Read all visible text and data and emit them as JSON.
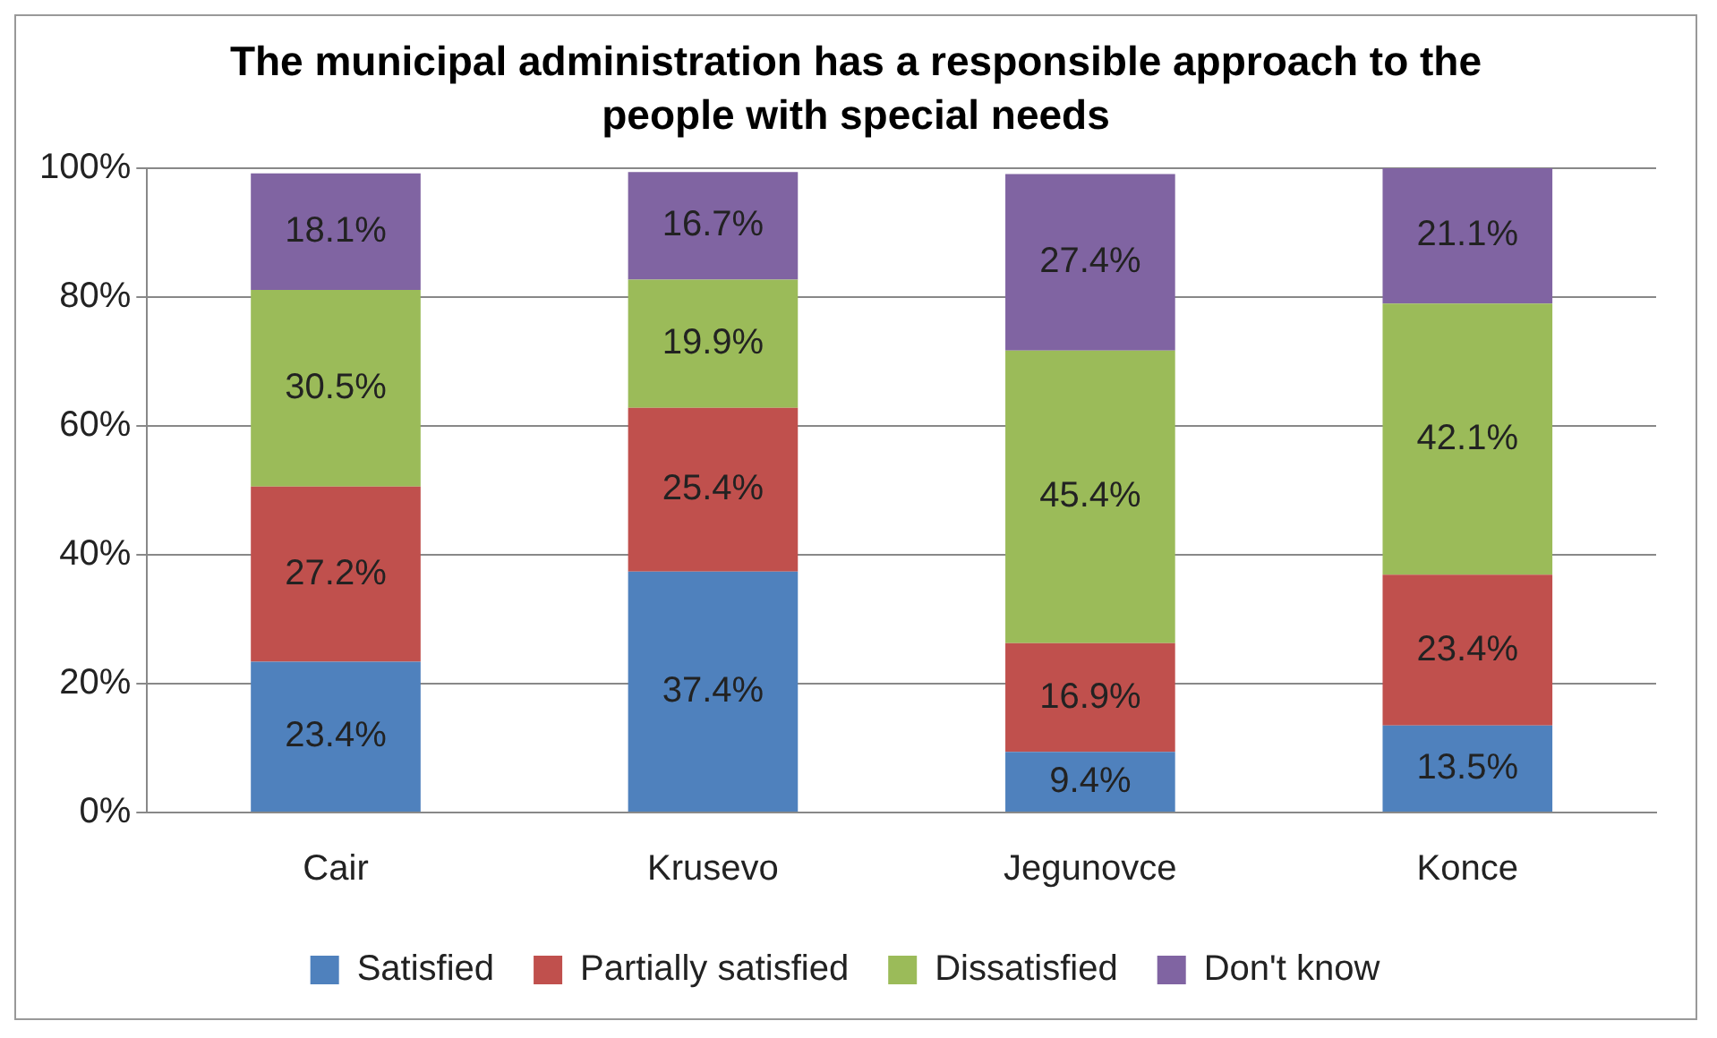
{
  "chart_data": {
    "type": "bar",
    "title": "The municipal administration has a responsible approach to the people with special needs",
    "categories": [
      "Cair",
      "Krusevo",
      "Jegunovce",
      "Konce"
    ],
    "stacked": true,
    "series": [
      {
        "name": "Satisfied",
        "color": "#4f81bd",
        "values": [
          23.4,
          37.4,
          9.4,
          13.5
        ],
        "value_labels": [
          "23.4%",
          "37.4%",
          "9.4%",
          "13.5%"
        ]
      },
      {
        "name": "Partially satisfied",
        "color": "#c0504d",
        "values": [
          27.2,
          25.4,
          16.9,
          23.4
        ],
        "value_labels": [
          "27.2%",
          "25.4%",
          "16.9%",
          "23.4%"
        ]
      },
      {
        "name": "Dissatisfied",
        "color": "#9bbb59",
        "values": [
          30.5,
          19.9,
          45.4,
          42.1
        ],
        "value_labels": [
          "30.5%",
          "19.9%",
          "45.4%",
          "42.1%"
        ]
      },
      {
        "name": "Don't know",
        "color": "#8064a2",
        "values": [
          18.1,
          16.7,
          27.4,
          21.1
        ],
        "value_labels": [
          "18.1%",
          "16.7%",
          "27.4%",
          "21.1%"
        ]
      }
    ],
    "ylim": [
      0,
      100
    ],
    "yticks": [
      {
        "value": 0,
        "label": "0%"
      },
      {
        "value": 20,
        "label": "20%"
      },
      {
        "value": 40,
        "label": "40%"
      },
      {
        "value": 60,
        "label": "60%"
      },
      {
        "value": 80,
        "label": "80%"
      },
      {
        "value": 100,
        "label": "100%"
      }
    ],
    "grid": "y",
    "legend": "bottom"
  }
}
